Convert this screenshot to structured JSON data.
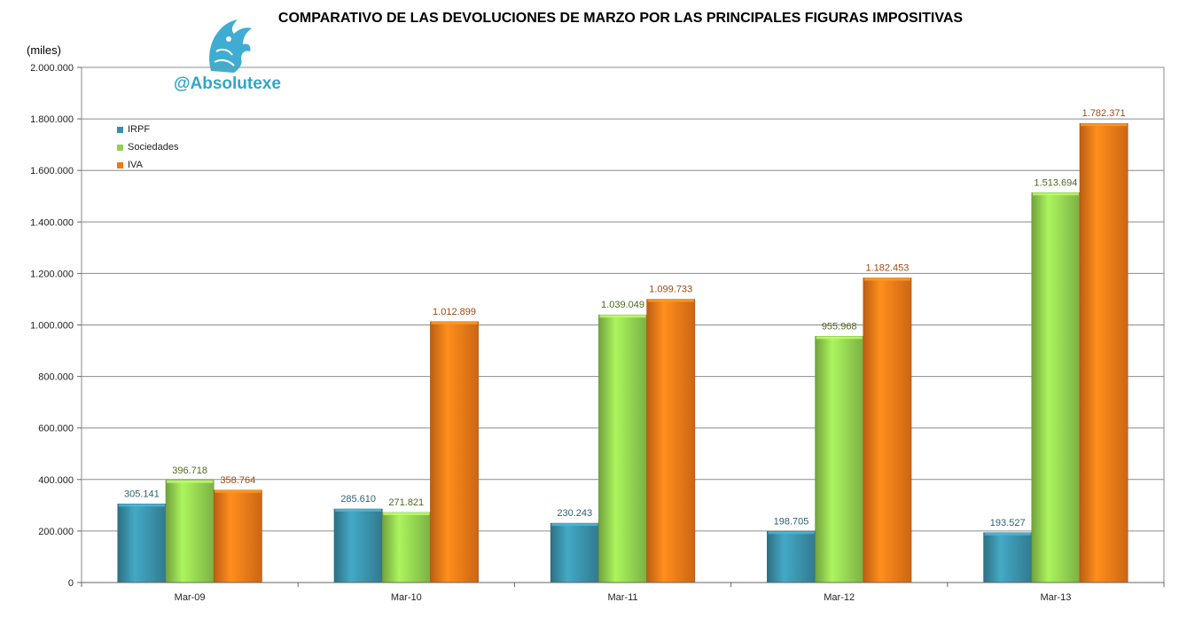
{
  "header": {
    "title": "COMPARATIVO DE LAS DEVOLUCIONES DE MARZO POR LAS PRINCIPALES FIGURAS IMPOSITIVAS",
    "unit": "(miles)",
    "brand": "@Absolutexe",
    "logo_icon": "griffin-icon"
  },
  "chart_data": {
    "type": "bar",
    "categories": [
      "Mar-09",
      "Mar-10",
      "Mar-11",
      "Mar-12",
      "Mar-13"
    ],
    "series": [
      {
        "name": "IRPF",
        "color": "#3a8fa8",
        "values": [
          305141,
          285610,
          230243,
          198705,
          193527
        ],
        "labels": [
          "305.141",
          "285.610",
          "230.243",
          "198.705",
          "193.527"
        ]
      },
      {
        "name": "Sociedades",
        "color": "#92d050",
        "values": [
          396718,
          271821,
          1039049,
          955968,
          1513694
        ],
        "labels": [
          "396.718",
          "271.821",
          "1.039.049",
          "955.968",
          "1.513.694"
        ]
      },
      {
        "name": "IVA",
        "color": "#f07818",
        "values": [
          358764,
          1012899,
          1099733,
          1182453,
          1782371
        ],
        "labels": [
          "358.764",
          "1.012.899",
          "1.099.733",
          "1.182.453",
          "1.782.371"
        ]
      }
    ],
    "ylim": [
      0,
      2000000
    ],
    "yticks": [
      0,
      200000,
      400000,
      600000,
      800000,
      1000000,
      1200000,
      1400000,
      1600000,
      1800000,
      2000000
    ],
    "ytick_labels": [
      "0",
      "200.000",
      "400.000",
      "600.000",
      "800.000",
      "1.000.000",
      "1.200.000",
      "1.400.000",
      "1.600.000",
      "1.800.000",
      "2.000.000"
    ],
    "grid": true,
    "legend_position": "top-left"
  }
}
